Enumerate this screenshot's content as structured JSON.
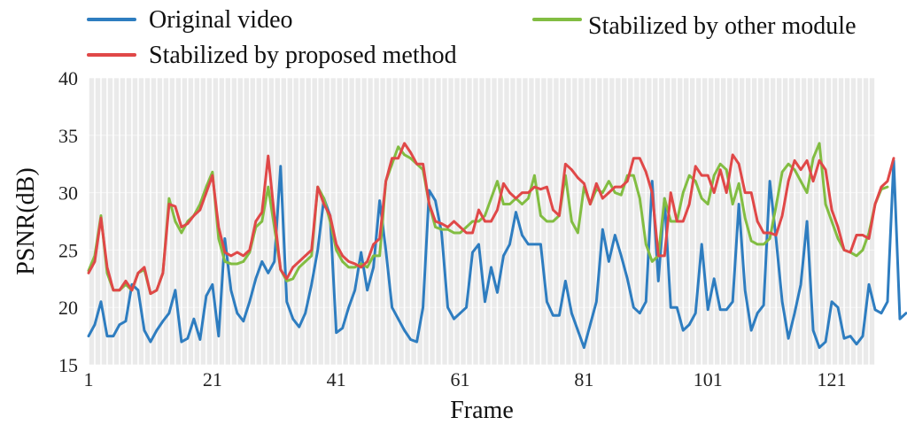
{
  "chart_data": {
    "type": "line",
    "title": "",
    "xlabel": "Frame",
    "ylabel": "PSNR(dB)",
    "xlim": [
      1,
      128
    ],
    "ylim": [
      15,
      40
    ],
    "x_ticks": [
      1,
      21,
      41,
      61,
      81,
      101,
      121
    ],
    "y_ticks": [
      15,
      20,
      25,
      30,
      35,
      40
    ],
    "grid": "vertical lines every frame on light grey background",
    "legend_placement": "top",
    "series": [
      {
        "name": "Original video",
        "color": "#2e7dc0",
        "values": [
          17.5,
          18.5,
          20.5,
          17.5,
          17.5,
          18.5,
          18.8,
          22,
          21.5,
          18,
          17,
          18,
          18.8,
          19.5,
          21.5,
          17,
          17.3,
          19,
          17.2,
          21,
          22,
          17.5,
          26,
          21.5,
          19.5,
          18.8,
          20.5,
          22.5,
          24,
          23,
          24,
          32.3,
          20.5,
          19,
          18.3,
          19.5,
          22,
          25,
          29.5,
          28,
          17.8,
          18.2,
          20,
          21.5,
          24.8,
          21.5,
          23.5,
          29.3,
          25,
          20,
          19,
          18,
          17.2,
          17,
          20,
          30.2,
          29.3,
          26.5,
          20,
          19,
          19.5,
          20,
          24.8,
          25.5,
          20.5,
          23.5,
          21.3,
          24.5,
          25.5,
          28.3,
          26.3,
          25.5,
          25.5,
          25.5,
          20.5,
          19.3,
          19.3,
          22.3,
          19.5,
          18,
          16.5,
          18.5,
          20.5,
          26.8,
          24,
          26.3,
          24.5,
          22.5,
          20,
          19.5,
          20.5,
          31,
          22.3,
          29.5,
          20,
          20,
          18,
          18.5,
          19.5,
          25.5,
          19.8,
          22.5,
          19.8,
          19.8,
          20.5,
          29,
          21.5,
          18,
          19.5,
          20.2,
          31,
          26,
          20.5,
          17.3,
          19.5,
          22,
          27.5,
          18,
          16.5,
          17,
          20.5,
          20,
          17.3,
          17.5,
          16.8,
          17.5,
          22,
          19.8,
          19.5,
          20.5,
          32.8,
          19,
          19.5
        ]
      },
      {
        "name": "Stabilized by proposed method",
        "color": "#e04848",
        "values": [
          23,
          24,
          27.8,
          23.5,
          21.5,
          21.5,
          22.3,
          21.5,
          23,
          23.5,
          21.2,
          21.5,
          23,
          29,
          28.8,
          27,
          27.3,
          28,
          28.5,
          30,
          31.5,
          27,
          24.8,
          24.5,
          24.8,
          24.5,
          25,
          27.5,
          28.3,
          33.2,
          28,
          23.3,
          22.5,
          23.5,
          24,
          24.5,
          25,
          30.5,
          29,
          28,
          25.5,
          24.5,
          24,
          23.8,
          23.5,
          24,
          25.5,
          26,
          31,
          33,
          33,
          34.3,
          33.5,
          32.5,
          32.5,
          29,
          27.5,
          27.3,
          27,
          27.5,
          27,
          26.5,
          26.5,
          28.5,
          27.5,
          27.5,
          28.5,
          30.8,
          30,
          29.5,
          30,
          30,
          30.5,
          30.3,
          30.5,
          28.5,
          28,
          32.5,
          32,
          31.3,
          30.8,
          29,
          30.8,
          29.5,
          30,
          30.5,
          30.5,
          31,
          33,
          33,
          31.8,
          30,
          24.5,
          24.5,
          30,
          27.5,
          27.5,
          29,
          32.3,
          31.5,
          31.5,
          30,
          32,
          30,
          33.3,
          32.5,
          30,
          30,
          27.5,
          26.5,
          26.5,
          26.3,
          28,
          31,
          32.8,
          32,
          32.8,
          31,
          32.8,
          32,
          28.5,
          27,
          25,
          24.8,
          26.3,
          26.3,
          26,
          29,
          30.5,
          31,
          33
        ]
      },
      {
        "name": "Stabilized by other module",
        "color": "#82bd42",
        "values": [
          23.2,
          24.5,
          28,
          23,
          21.5,
          21.5,
          22,
          21.5,
          23,
          23.3,
          21.2,
          21.5,
          23,
          29.5,
          27.5,
          26.5,
          27.5,
          28,
          29,
          30.5,
          31.8,
          26,
          24,
          23.8,
          23.8,
          24,
          24.8,
          27,
          27.5,
          30.5,
          27,
          23.3,
          22.3,
          22.5,
          23.5,
          24,
          24.5,
          30.5,
          29.5,
          27.5,
          25,
          24,
          23.5,
          23.5,
          23.8,
          23.5,
          24.5,
          24.5,
          31,
          32.5,
          34,
          33.3,
          33,
          32.5,
          32,
          29,
          27,
          26.8,
          26.8,
          26.5,
          26.5,
          27,
          27.5,
          27.5,
          28,
          29.5,
          31,
          29,
          29,
          29.5,
          29,
          29.5,
          31.5,
          28,
          27.5,
          27.5,
          28,
          31.5,
          27.5,
          26.5,
          30.5,
          29,
          30.3,
          30,
          31,
          30,
          29.8,
          31.5,
          31.5,
          29.5,
          25.5,
          24,
          24.5,
          29.5,
          27.5,
          27.5,
          30,
          31.5,
          31,
          29.5,
          29,
          31.5,
          32.5,
          32,
          29,
          30.8,
          27.8,
          25.8,
          25.5,
          25.5,
          26,
          28.8,
          31.8,
          32.5,
          32,
          31,
          30,
          33,
          34.3,
          29,
          27.5,
          26,
          25,
          24.8,
          24.5,
          25,
          26.5,
          29,
          30.3,
          30.5
        ]
      }
    ]
  }
}
